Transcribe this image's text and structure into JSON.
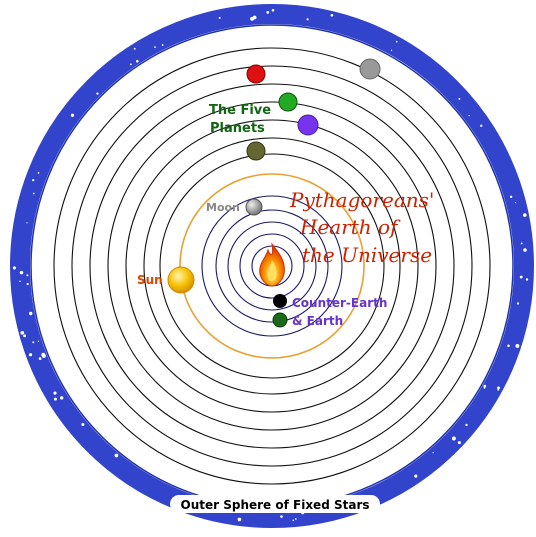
{
  "labels": {
    "title_line1": "Pythagoreans'",
    "title_line2": "Hearth of",
    "title_line3": "the Universe",
    "five_planets_line1": "The Five",
    "five_planets_line2": "Planets",
    "moon": "Moon",
    "sun": "Sun",
    "counter_earth_line1": "Counter-Earth",
    "counter_earth_line2": "& Earth",
    "outer_sphere": "Outer Sphere of Fixed Stars"
  },
  "colors": {
    "outer_band": "#3344cc",
    "orbit_line": "#111111",
    "sun_orbit": "#e8a030",
    "title": "#cc2200",
    "five_planets_label": "#116611",
    "moon_label": "#888888",
    "sun_label": "#dd4400",
    "counter_earth_label": "#6633cc",
    "planet_red": "#dd1111",
    "planet_gray": "#999999",
    "planet_green": "#22aa22",
    "planet_purple": "#7733ee",
    "planet_olive": "#666633",
    "moon_body": "#aaaaaa",
    "sun_body": "#f5c000",
    "counter_earth_body": "#000000",
    "earth_body": "#1a6a1a",
    "fire": "#ff6600"
  },
  "icons": {
    "central_fire": "flame-icon"
  }
}
